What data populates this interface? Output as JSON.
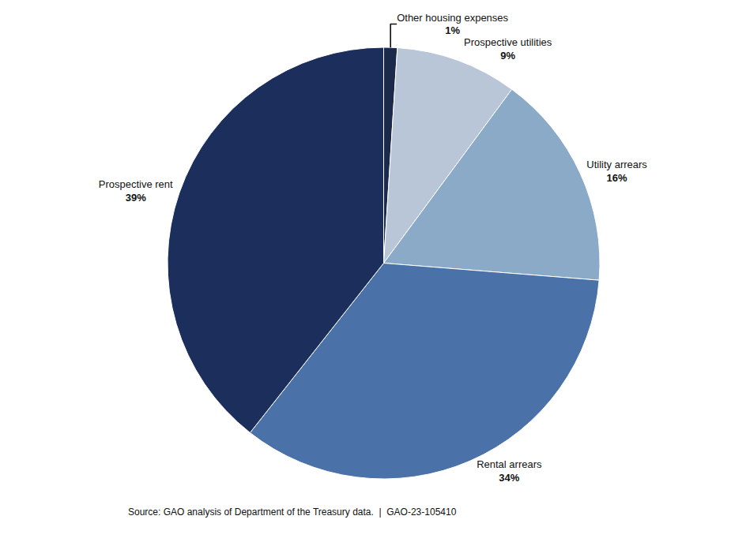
{
  "chart_data": {
    "type": "pie",
    "categories": [
      "Other housing expenses",
      "Prospective utilities",
      "Utility arrears",
      "Rental arrears",
      "Prospective rent"
    ],
    "values": [
      1,
      9,
      16,
      34,
      39
    ],
    "value_labels": [
      "1%",
      "9%",
      "16%",
      "34%",
      "39%"
    ],
    "colors": [
      "#1b2a4a",
      "#b8c6d8",
      "#8aaac8",
      "#4a72a8",
      "#1b2e5c"
    ],
    "data_labels": true,
    "annotations": [
      "Source: GAO analysis of Department of the Treasury data.  |  GAO-23-105410"
    ]
  }
}
